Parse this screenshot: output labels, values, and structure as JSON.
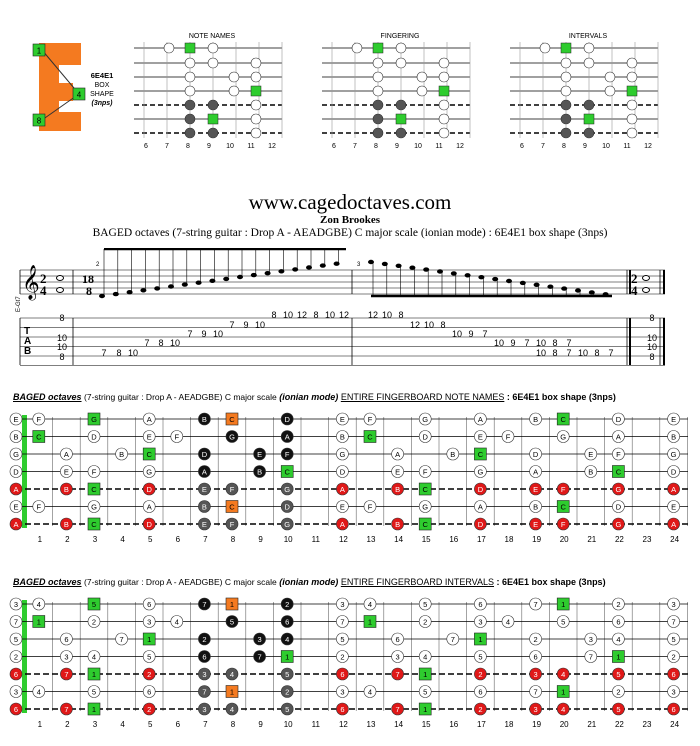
{
  "logo": {
    "letter_name": "6E4E1",
    "box_label": "BOX",
    "shape_label": "SHAPE",
    "nps_label": "(3nps)",
    "markers": [
      "1",
      "4",
      "8"
    ],
    "colors": {
      "orange": "#f47a20",
      "green": "#2ecc2e"
    }
  },
  "mini_diagrams": [
    {
      "title": "NOTE NAMES",
      "frets": [
        "6",
        "7",
        "8",
        "9",
        "10",
        "11",
        "12"
      ]
    },
    {
      "title": "FINGERING",
      "frets": [
        "6",
        "7",
        "8",
        "9",
        "10",
        "11",
        "12"
      ]
    },
    {
      "title": "INTERVALS",
      "frets": [
        "6",
        "7",
        "8",
        "9",
        "10",
        "11",
        "12"
      ]
    }
  ],
  "header": {
    "site": "www.cagedoctaves.com",
    "author": "Zon Brookes",
    "subtitle": "BAGED octaves (7-string guitar : Drop A - AEADGBE) C major scale (ionian mode) : 6E4E1 box shape (3nps)"
  },
  "notation": {
    "staff_label": "E-Gt7",
    "time_sig_left": [
      "2",
      "4"
    ],
    "time_sig_mid": [
      "18",
      "8"
    ],
    "time_sig_right": [
      "2",
      "4"
    ],
    "measure_2": "2",
    "measure_3": "3",
    "tab_letters": [
      "T",
      "A",
      "B"
    ],
    "tab_m1": [
      "8",
      "10",
      "10",
      "8"
    ],
    "tab_m2_low": [
      "7",
      "8",
      "10"
    ],
    "tab_m2_mid": [
      "7",
      "8",
      "10"
    ],
    "tab_m2_mid2": [
      "7",
      "9",
      "10"
    ],
    "tab_m2_hi": [
      "7",
      "9",
      "10"
    ],
    "tab_m2_hi2": [
      "8",
      "10",
      "12"
    ],
    "tab_m2_top": [
      "8",
      "10",
      "12"
    ],
    "tab_m3_top": [
      "12",
      "10",
      "8"
    ],
    "tab_m3_b": [
      "12",
      "10",
      "8"
    ],
    "tab_m3_g": [
      "10",
      "9",
      "7"
    ],
    "tab_m3_d": [
      "10",
      "9",
      "7"
    ],
    "tab_m3_a": [
      "10",
      "8",
      "7"
    ],
    "tab_m3_e": [
      "10",
      "8",
      "7"
    ],
    "tab_m3_low": [
      "10",
      "8",
      "7"
    ],
    "tab_m4": [
      "8",
      "10",
      "10",
      "8"
    ]
  },
  "board1": {
    "title_a": "BAGED octaves",
    "title_b": "(7-string guitar : Drop A - AEADGBE) C major scale",
    "title_c": "(ionian mode)",
    "title_d": "ENTIRE FINGERBOARD  NOTE NAMES",
    "title_e": ": 6E4E1 box shape (3nps)",
    "open": [
      "E",
      "B",
      "G",
      "D",
      "A",
      "E",
      "A"
    ],
    "frets": [
      "1",
      "2",
      "3",
      "4",
      "5",
      "6",
      "7",
      "8",
      "9",
      "10",
      "11",
      "12",
      "13",
      "14",
      "15",
      "16",
      "17",
      "18",
      "19",
      "20",
      "21",
      "22",
      "23",
      "24"
    ]
  },
  "board2": {
    "title_a": "BAGED octaves",
    "title_b": "(7-string guitar : Drop A - AEADGBE) C major scale",
    "title_c": "(ionian mode)",
    "title_d": "ENTIRE FINGERBOARD  INTERVALS",
    "title_e": ": 6E4E1 box shape (3nps)",
    "open": [
      "3",
      "7",
      "5",
      "2",
      "6",
      "3",
      "6"
    ],
    "frets": [
      "1",
      "2",
      "3",
      "4",
      "5",
      "6",
      "7",
      "8",
      "9",
      "10",
      "11",
      "12",
      "13",
      "14",
      "15",
      "16",
      "17",
      "18",
      "19",
      "20",
      "21",
      "22",
      "23",
      "24"
    ]
  }
}
